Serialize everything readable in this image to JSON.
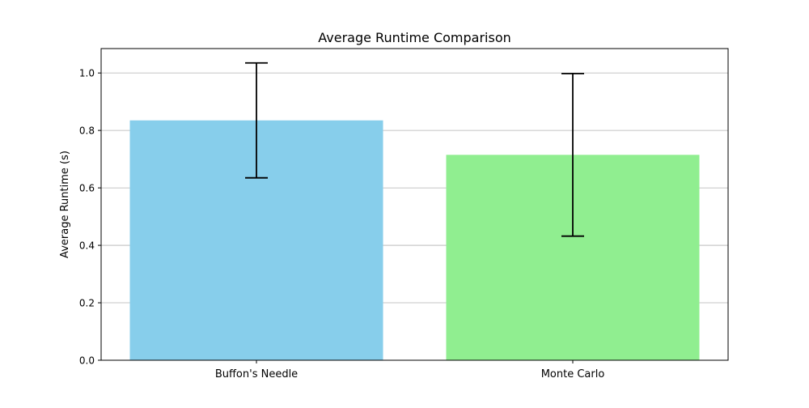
{
  "chart_data": {
    "type": "bar",
    "title": "Average Runtime Comparison",
    "xlabel": "",
    "ylabel": "Average Runtime (s)",
    "categories": [
      "Buffon's Needle",
      "Monte Carlo"
    ],
    "values": [
      0.835,
      0.715
    ],
    "error": [
      0.2,
      0.283
    ],
    "colors": [
      "#87ceeb",
      "#90ee90"
    ],
    "ylim": [
      0,
      1.085
    ],
    "yticks": [
      "0.0",
      "0.2",
      "0.4",
      "0.6",
      "0.8",
      "1.0"
    ],
    "grid": "y"
  }
}
